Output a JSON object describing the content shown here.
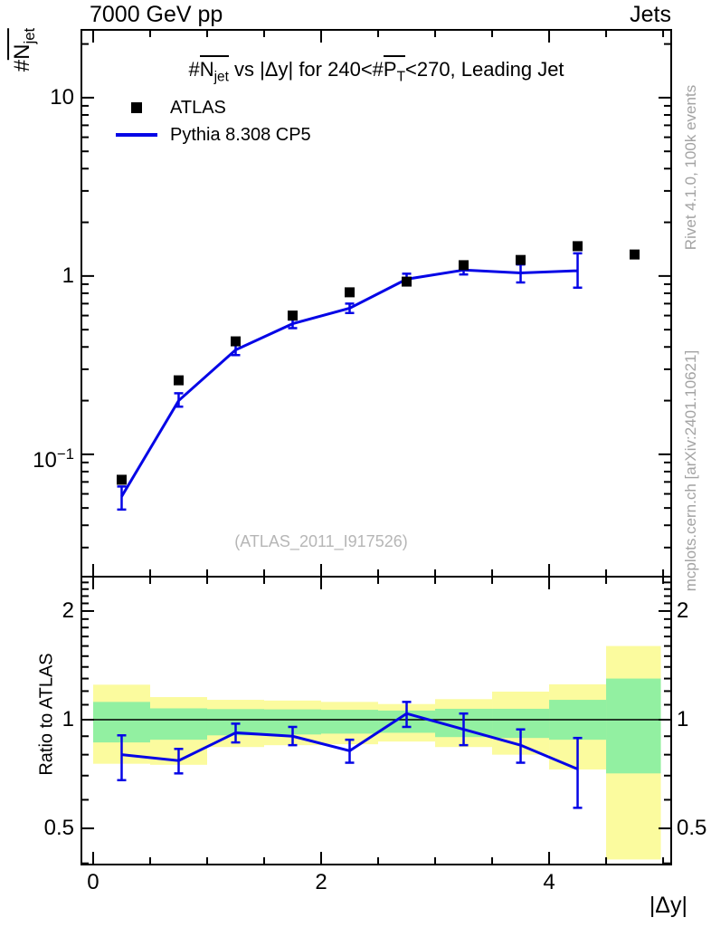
{
  "header": {
    "left": "7000 GeV pp",
    "right": "Jets"
  },
  "labels": {
    "title": [
      {
        "t": "#"
      },
      {
        "t": "N",
        "g": "ov"
      },
      {
        "t": "jet",
        "s": "sub",
        "g": "ov"
      },
      {
        "t": " vs |Δy| for 240<#"
      },
      {
        "t": "P",
        "g": "ov"
      },
      {
        "t": "T",
        "s": "sub",
        "g": "ov"
      },
      {
        "t": "<270, Leading Jet"
      }
    ],
    "ylabel_main": [
      {
        "t": "#"
      },
      {
        "t": "N",
        "g": "ov"
      },
      {
        "t": "jet",
        "s": "sub",
        "g": "ov"
      }
    ],
    "ylabel_ratio": "Ratio to ATLAS",
    "xlabel": "|Δy|",
    "watermark": "(ATLAS_2011_I917526)"
  },
  "side_texts": {
    "top": "Rivet 4.1.0,  100k events",
    "bottom": "mcplots.cern.ch [arXiv:2401.10621]"
  },
  "legend": {
    "items": [
      {
        "label": "ATLAS",
        "marker": "black-square"
      },
      {
        "label": "Pythia 8.308 CP5",
        "marker": "blue-line"
      }
    ]
  },
  "colors": {
    "data": "#000000",
    "mc": "#0505e6",
    "band_yellow": "#fbfb9e",
    "band_green": "#92f0a1",
    "gray_text": "#a3a3a3",
    "watermark": "#b6b6b6"
  },
  "chart_data": [
    {
      "id": "main",
      "type": "line",
      "yscale": "log",
      "xlim": [
        -0.103,
        5.071
      ],
      "ylim": [
        0.0206,
        24
      ],
      "x_ticks": {
        "minor_step": 0.5,
        "major": [
          0,
          2,
          4
        ],
        "major_labels": [
          "0",
          "2",
          "4"
        ]
      },
      "y_ticks": {
        "major": [
          10,
          1,
          0.1
        ],
        "major_labels_rich": [
          [
            {
              "t": "10"
            }
          ],
          [
            {
              "t": "1"
            }
          ],
          [
            {
              "t": "10"
            },
            {
              "t": "−1",
              "s": "sup"
            }
          ]
        ]
      },
      "series": [
        {
          "name": "ATLAS",
          "style": "squares",
          "color": "#000000",
          "x": [
            0.25,
            0.75,
            1.25,
            1.75,
            2.25,
            2.75,
            3.25,
            3.75,
            4.25,
            4.75
          ],
          "y": [
            0.072,
            0.26,
            0.43,
            0.6,
            0.81,
            0.93,
            1.15,
            1.23,
            1.47,
            1.32
          ]
        },
        {
          "name": "Pythia 8.308 CP5",
          "style": "line-errorbars",
          "color": "#0505e6",
          "x": [
            0.25,
            0.75,
            1.25,
            1.75,
            2.25,
            2.75,
            3.25,
            3.75,
            4.25
          ],
          "y": [
            0.058,
            0.2,
            0.385,
            0.54,
            0.66,
            0.96,
            1.08,
            1.04,
            1.07
          ],
          "y_lo": [
            0.049,
            0.185,
            0.36,
            0.51,
            0.62,
            0.9,
            1.02,
            0.92,
            0.86
          ],
          "y_hi": [
            0.066,
            0.22,
            0.41,
            0.57,
            0.7,
            1.03,
            1.16,
            1.16,
            1.34
          ]
        }
      ]
    },
    {
      "id": "ratio",
      "type": "ratio",
      "yscale": "log",
      "ylim": [
        0.397,
        2.49
      ],
      "unity_line": 1,
      "y_ticks": {
        "major": [
          2,
          1,
          0.5
        ],
        "major_labels": [
          "2",
          "1",
          "0.5"
        ],
        "minor_step": 0.1,
        "minor_range": [
          0.4,
          2.4
        ]
      },
      "bands": [
        {
          "x0": 0.0,
          "x1": 0.5,
          "yellow": [
            0.755,
            1.25
          ],
          "green": [
            0.865,
            1.12
          ]
        },
        {
          "x0": 0.5,
          "x1": 1.0,
          "yellow": [
            0.75,
            1.155
          ],
          "green": [
            0.88,
            1.075
          ]
        },
        {
          "x0": 1.0,
          "x1": 1.5,
          "yellow": [
            0.84,
            1.135
          ],
          "green": [
            0.905,
            1.07
          ]
        },
        {
          "x0": 1.5,
          "x1": 2.0,
          "yellow": [
            0.85,
            1.13
          ],
          "green": [
            0.91,
            1.068
          ]
        },
        {
          "x0": 2.0,
          "x1": 2.5,
          "yellow": [
            0.855,
            1.12
          ],
          "green": [
            0.915,
            1.065
          ]
        },
        {
          "x0": 2.5,
          "x1": 3.0,
          "yellow": [
            0.87,
            1.105
          ],
          "green": [
            0.92,
            1.06
          ]
        },
        {
          "x0": 3.0,
          "x1": 3.5,
          "yellow": [
            0.84,
            1.14
          ],
          "green": [
            0.895,
            1.072
          ]
        },
        {
          "x0": 3.5,
          "x1": 4.0,
          "yellow": [
            0.8,
            1.196
          ],
          "green": [
            0.89,
            1.072
          ]
        },
        {
          "x0": 4.0,
          "x1": 4.5,
          "yellow": [
            0.728,
            1.253
          ],
          "green": [
            0.88,
            1.135
          ]
        },
        {
          "x0": 4.5,
          "x1": 4.98,
          "yellow": [
            0.41,
            1.6
          ],
          "green": [
            0.71,
            1.3
          ]
        }
      ],
      "series": [
        {
          "name": "Pythia/ATLAS",
          "style": "line-errorbars",
          "color": "#0505e6",
          "x": [
            0.25,
            0.75,
            1.25,
            1.75,
            2.25,
            2.75,
            3.25,
            3.75,
            4.25
          ],
          "y": [
            0.8,
            0.77,
            0.92,
            0.9,
            0.82,
            1.04,
            0.94,
            0.85,
            0.73
          ],
          "y_lo": [
            0.68,
            0.71,
            0.865,
            0.85,
            0.76,
            0.955,
            0.85,
            0.76,
            0.57
          ],
          "y_hi": [
            0.905,
            0.83,
            0.975,
            0.955,
            0.88,
            1.12,
            1.04,
            0.94,
            0.89
          ]
        }
      ]
    }
  ]
}
